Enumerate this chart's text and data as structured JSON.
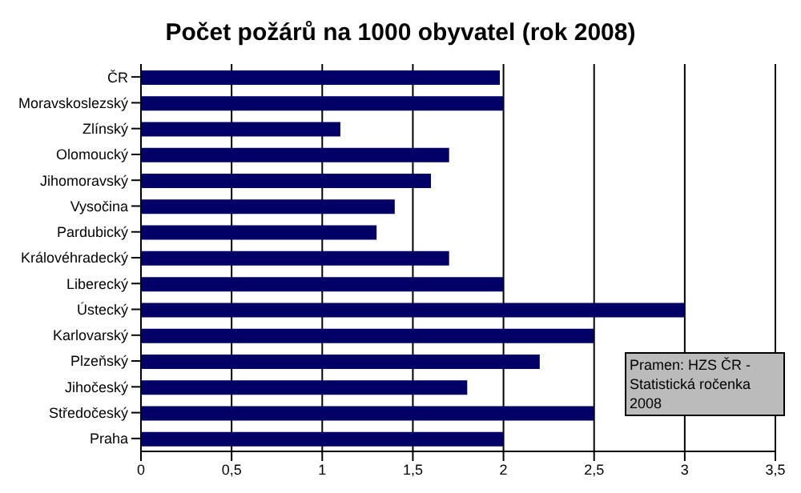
{
  "chart_data": {
    "type": "bar",
    "orientation": "horizontal",
    "title": "Počet požárů na 1000 obyvatel (rok 2008)",
    "categories": [
      "ČR",
      "Moravskoslezský",
      "Zlínský",
      "Olomoucký",
      "Jihomoravský",
      "Vysočina",
      "Pardubický",
      "Královéhradecký",
      "Liberecký",
      "Ústecký",
      "Karlovarský",
      "Plzeňský",
      "Jihočeský",
      "Středočeský",
      "Praha"
    ],
    "values": [
      1.98,
      2.0,
      1.1,
      1.7,
      1.6,
      1.4,
      1.3,
      1.7,
      2.0,
      3.0,
      2.5,
      2.2,
      1.8,
      2.5,
      2.0
    ],
    "color": "#000066",
    "xlim": [
      0,
      3.5
    ],
    "xticks": [
      0,
      {
        "value": 0.5,
        "label": "0,5"
      },
      1,
      {
        "value": 1.5,
        "label": "1,5"
      },
      2,
      {
        "value": 2.5,
        "label": "2,5"
      },
      3,
      {
        "value": 3.5,
        "label": "3,5"
      }
    ],
    "grid": "x",
    "annotations": [
      "Pramen: HZS ČR - Statistická ročenka 2008"
    ]
  }
}
